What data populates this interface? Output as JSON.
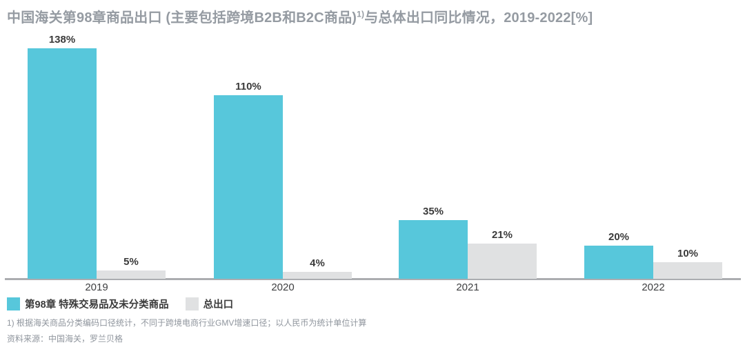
{
  "title": {
    "main": "中国海关第98章商品出口 (主要包括跨境B2B和B2C商品)",
    "superscript": "1)",
    "rest": "与总体出口同比情况，2019-2022[%]"
  },
  "chart_data": {
    "type": "bar",
    "categories": [
      "2019",
      "2020",
      "2021",
      "2022"
    ],
    "series": [
      {
        "name": "第98章 特殊交易品及未分类商品",
        "values": [
          138,
          110,
          35,
          20
        ],
        "color": "#57C7DB"
      },
      {
        "name": "总出口",
        "values": [
          5,
          4,
          21,
          10
        ],
        "color": "#E0E1E2"
      }
    ],
    "value_suffix": "%",
    "ylim": [
      0,
      138
    ],
    "grid": false,
    "legend_position": "bottom-left",
    "axis_color": "#ABADB0",
    "bar_label_color": "#3A3A3A"
  },
  "footnotes": [
    "1) 根据海关商品分类编码口径统计，不同于跨境电商行业GMV增速口径；以人民币为统计单位计算",
    "资料来源：中国海关，罗兰贝格"
  ]
}
